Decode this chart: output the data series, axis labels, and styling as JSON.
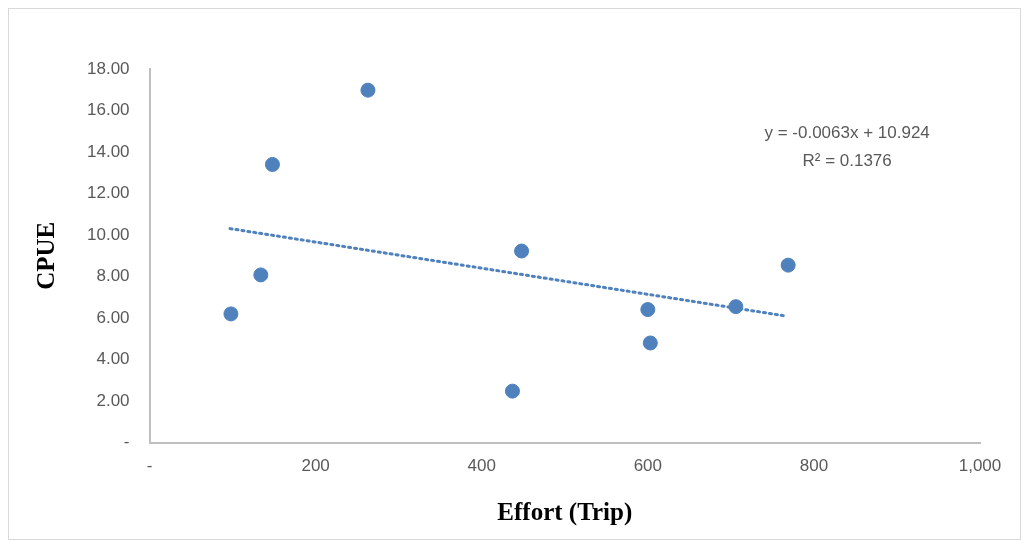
{
  "chart_data": {
    "type": "scatter",
    "xlabel": "Effort (Trip)",
    "ylabel": "CPUE",
    "xlim": [
      0,
      1000
    ],
    "ylim": [
      0,
      18
    ],
    "xticks": [
      {
        "value": 0,
        "label": "-"
      },
      200,
      400,
      600,
      800,
      {
        "value": 1000,
        "label": "1,000"
      }
    ],
    "yticks": [
      {
        "value": 0,
        "label": "-"
      },
      {
        "value": 2,
        "label": "2.00"
      },
      {
        "value": 4,
        "label": "4.00"
      },
      {
        "value": 6,
        "label": "6.00"
      },
      {
        "value": 8,
        "label": "8.00"
      },
      {
        "value": 10,
        "label": "10.00"
      },
      {
        "value": 12,
        "label": "12.00"
      },
      {
        "value": 14,
        "label": "14.00"
      },
      {
        "value": 16,
        "label": "16.00"
      },
      {
        "value": 18,
        "label": "18.00"
      }
    ],
    "grid": false,
    "legend": false,
    "marker": "circle",
    "series": [
      {
        "color": "#4f81bd",
        "x": [
          98,
          134,
          148,
          263,
          448,
          437,
          600,
          603,
          706,
          769
        ],
        "values": [
          6.2,
          8.08,
          13.4,
          16.98,
          9.23,
          2.48,
          6.41,
          4.8,
          6.55,
          8.55
        ]
      },
      {
        "type": "line",
        "line_style": "dotted",
        "marker": "none",
        "color": "#4f81bd",
        "x": [
          97,
          766
        ],
        "values": [
          10.31,
          6.1
        ]
      }
    ],
    "annotations": [
      "y = -0.0063x + 10.924",
      "R² = 0.1376"
    ]
  }
}
